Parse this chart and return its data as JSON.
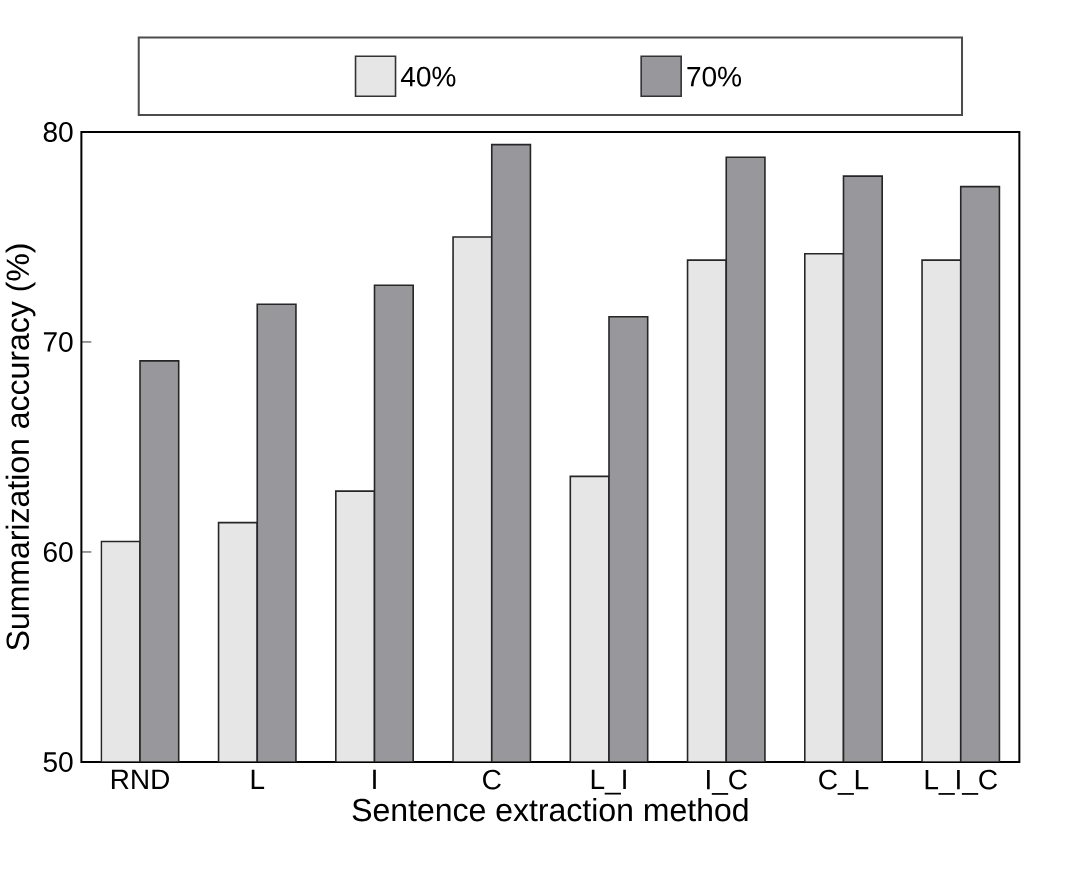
{
  "chart_data": {
    "type": "bar",
    "xlabel": "Sentence extraction method",
    "ylabel": "Summarization accuracy (%)",
    "categories": [
      "RND",
      "L",
      "I",
      "C",
      "L_I",
      "I_C",
      "C_L",
      "L_I_C"
    ],
    "series": [
      {
        "name": "40%",
        "color": "#e6e6e6",
        "values": [
          60.5,
          61.4,
          62.9,
          75.0,
          63.6,
          73.9,
          74.2,
          73.9
        ]
      },
      {
        "name": "70%",
        "color": "#98989c",
        "values": [
          69.1,
          71.8,
          72.7,
          79.4,
          71.2,
          78.8,
          77.9,
          77.4
        ]
      }
    ],
    "ylim": [
      50,
      80
    ],
    "yticks": [
      50,
      60,
      70,
      80
    ],
    "legend": "top",
    "grid": false
  }
}
